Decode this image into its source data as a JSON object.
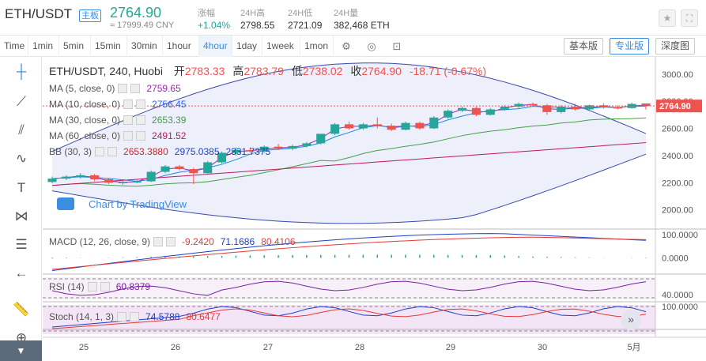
{
  "header": {
    "pair": "ETH/USDT",
    "badge": "主板",
    "price": "2764.90",
    "cny": "≈ 17999.49 CNY",
    "stats": [
      {
        "label": "涨幅",
        "value": "+1.04%",
        "color": "#26a69a"
      },
      {
        "label": "24H高",
        "value": "2798.55",
        "color": "#333333"
      },
      {
        "label": "24H低",
        "value": "2721.09",
        "color": "#333333"
      },
      {
        "label": "24H量",
        "value": "382,468 ETH",
        "color": "#333333"
      }
    ]
  },
  "toolbar": {
    "timeframes": [
      "Time",
      "1min",
      "5min",
      "15min",
      "30min",
      "1hour",
      "4hour",
      "1day",
      "1week",
      "1mon"
    ],
    "active_timeframe": "4hour",
    "view_buttons": [
      "基本版",
      "专业版",
      "深度图"
    ],
    "active_view": "专业版"
  },
  "legend": {
    "title": "ETH/USDT, 240, Huobi",
    "open_label": "开",
    "open": "2783.33",
    "high_label": "高",
    "high": "2783.79",
    "low_label": "低",
    "low": "2738.02",
    "close_label": "收",
    "close": "2764.90",
    "change": "-18.71 (-0.67%)"
  },
  "indicators": [
    {
      "label": "MA (5, close, 0)",
      "values": [
        "2759.65"
      ],
      "colors": [
        "#9c27b0"
      ]
    },
    {
      "label": "MA (10, close, 0)",
      "values": [
        "2756.45"
      ],
      "colors": [
        "#2962ff"
      ]
    },
    {
      "label": "MA (30, close, 0)",
      "values": [
        "2653.39"
      ],
      "colors": [
        "#43a047"
      ]
    },
    {
      "label": "MA (60, close, 0)",
      "values": [
        "2491.52"
      ],
      "colors": [
        "#c2185b"
      ]
    },
    {
      "label": "BB (30, 3)",
      "values": [
        "2653.3880",
        "2975.0385",
        "2331.7375"
      ],
      "colors": [
        "#c62828",
        "#1e40c8",
        "#1e40c8"
      ]
    }
  ],
  "watermark": "Chart by TradingView",
  "price_axis": [
    "3000.00",
    "2800.00",
    "2600.00",
    "2400.00",
    "2200.00",
    "2000.00"
  ],
  "current_price_tag": "2764.90",
  "macd": {
    "label": "MACD (12, 26, close, 9)",
    "values": [
      "-9.2420",
      "71.1686",
      "80.4106"
    ],
    "colors": [
      "#e53935",
      "#1e40c8",
      "#e53935"
    ],
    "axis": [
      "100.0000",
      "0.0000"
    ]
  },
  "rsi": {
    "label": "RSI (14)",
    "value": "60.8379",
    "color": "#7b1fa2",
    "axis": [
      "40.0000"
    ]
  },
  "stoch": {
    "label": "Stoch (14, 1, 3)",
    "values": [
      "74.5788",
      "80.6477"
    ],
    "colors": [
      "#1e40c8",
      "#e53935"
    ],
    "axis": [
      "100.0000"
    ]
  },
  "time_axis": [
    "25",
    "26",
    "27",
    "28",
    "29",
    "30",
    "5月"
  ],
  "chart_data": {
    "type": "candlestick",
    "candles": [
      [
        2205,
        2245,
        2195,
        2230
      ],
      [
        2230,
        2255,
        2220,
        2245
      ],
      [
        2245,
        2270,
        2230,
        2255
      ],
      [
        2255,
        2265,
        2210,
        2225
      ],
      [
        2225,
        2235,
        2190,
        2200
      ],
      [
        2200,
        2215,
        2185,
        2205
      ],
      [
        2205,
        2220,
        2195,
        2210
      ],
      [
        2210,
        2290,
        2205,
        2280
      ],
      [
        2280,
        2330,
        2270,
        2320
      ],
      [
        2320,
        2330,
        2290,
        2300
      ],
      [
        2300,
        2310,
        2190,
        2270
      ],
      [
        2270,
        2360,
        2260,
        2350
      ],
      [
        2350,
        2430,
        2340,
        2420
      ],
      [
        2420,
        2460,
        2400,
        2440
      ],
      [
        2440,
        2460,
        2420,
        2430
      ],
      [
        2430,
        2475,
        2420,
        2465
      ],
      [
        2465,
        2485,
        2440,
        2450
      ],
      [
        2450,
        2480,
        2440,
        2470
      ],
      [
        2470,
        2500,
        2460,
        2490
      ],
      [
        2490,
        2560,
        2480,
        2560
      ],
      [
        2560,
        2640,
        2550,
        2630
      ],
      [
        2630,
        2650,
        2590,
        2600
      ],
      [
        2600,
        2640,
        2590,
        2630
      ],
      [
        2630,
        2680,
        2600,
        2620
      ],
      [
        2620,
        2635,
        2580,
        2590
      ],
      [
        2590,
        2650,
        2585,
        2640
      ],
      [
        2640,
        2650,
        2590,
        2600
      ],
      [
        2600,
        2690,
        2595,
        2680
      ],
      [
        2680,
        2740,
        2670,
        2730
      ],
      [
        2730,
        2760,
        2720,
        2750
      ],
      [
        2750,
        2760,
        2690,
        2700
      ],
      [
        2700,
        2750,
        2695,
        2740
      ],
      [
        2740,
        2770,
        2730,
        2760
      ],
      [
        2760,
        2790,
        2750,
        2780
      ],
      [
        2780,
        2790,
        2760,
        2770
      ],
      [
        2770,
        2780,
        2700,
        2720
      ],
      [
        2720,
        2770,
        2710,
        2760
      ],
      [
        2760,
        2780,
        2730,
        2740
      ],
      [
        2740,
        2775,
        2735,
        2770
      ],
      [
        2770,
        2785,
        2745,
        2755
      ],
      [
        2755,
        2770,
        2740,
        2750
      ],
      [
        2750,
        2790,
        2745,
        2780
      ],
      [
        2783.33,
        2783.79,
        2738.02,
        2764.9
      ]
    ],
    "ylim": [
      1870,
      3080
    ]
  },
  "colors": {
    "up": "#26a69a",
    "down": "#ef5350",
    "accent": "#3c8de0"
  }
}
